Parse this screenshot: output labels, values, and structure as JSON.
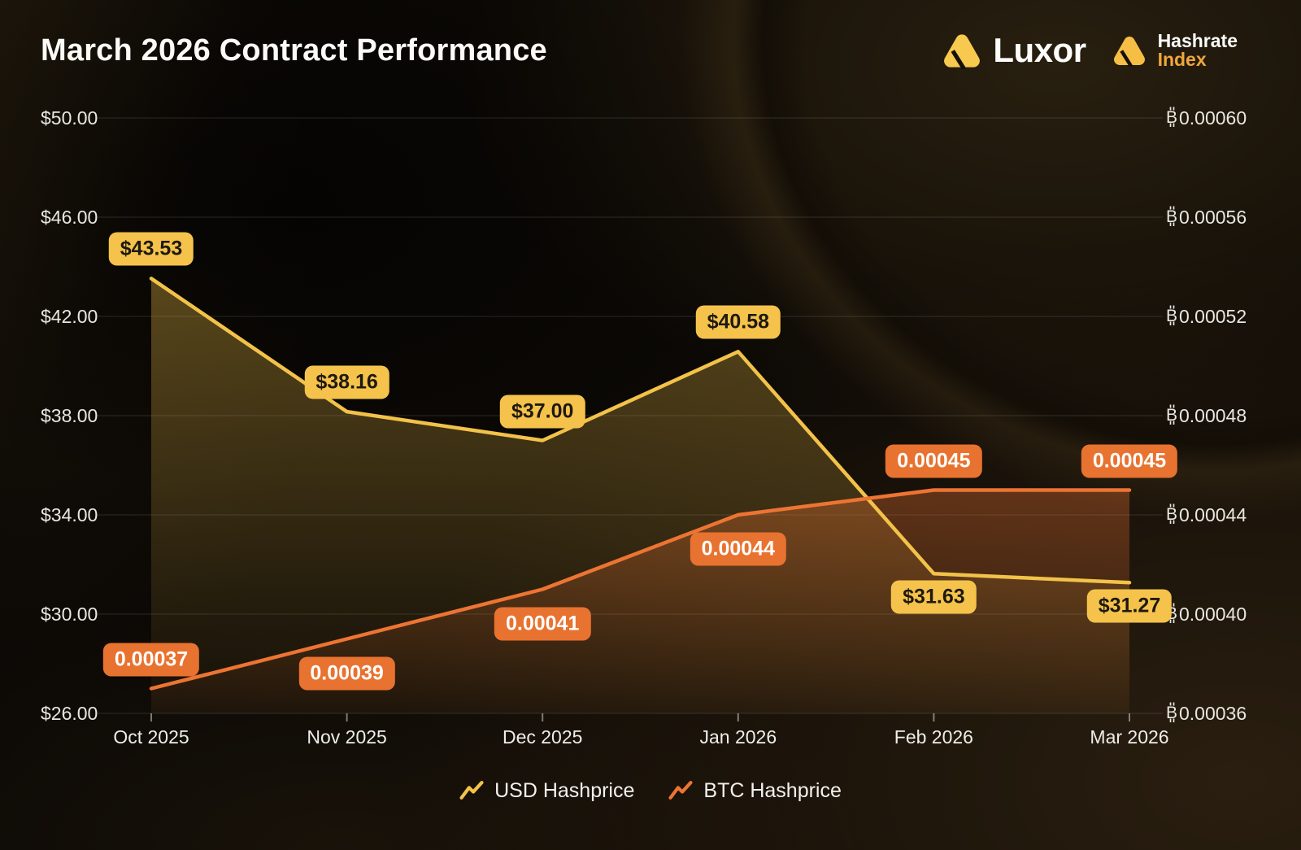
{
  "header": {
    "title": "March 2026 Contract Performance"
  },
  "logos": {
    "luxor": "Luxor",
    "hashrate_line1": "Hashrate",
    "hashrate_line2": "Index",
    "triangle_color": "#F7C94F",
    "index_text_color": "#F0A73C"
  },
  "colors": {
    "usd_yellow": "#F2C249",
    "btc_orange": "#ED7433",
    "background": "#0B0805",
    "gridline": "rgba(255,255,255,0.13)",
    "axis_text": "#E9E7E2"
  },
  "chart_data": {
    "type": "line",
    "title": "March 2026 Contract Performance",
    "categories": [
      "Oct 2025",
      "Nov 2025",
      "Dec 2025",
      "Jan 2026",
      "Feb 2026",
      "Mar 2026"
    ],
    "series": [
      {
        "name": "USD Hashprice",
        "axis": "left",
        "color": "#F2C249",
        "badge_bg": "#F5C34B",
        "badge_text": "#1E1910",
        "values": [
          43.53,
          38.16,
          37.0,
          40.58,
          31.63,
          31.27
        ],
        "labels": [
          "$43.53",
          "$38.16",
          "$37.00",
          "$40.58",
          "$31.63",
          "$31.27"
        ],
        "label_position": [
          "above",
          "above",
          "above",
          "above",
          "below",
          "below"
        ]
      },
      {
        "name": "BTC Hashprice",
        "axis": "right",
        "color": "#ED7433",
        "badge_bg": "#E8722F",
        "badge_text": "#FFFFFF",
        "values": [
          0.00037,
          0.00039,
          0.00041,
          0.00044,
          0.00045,
          0.00045
        ],
        "labels": [
          "0.00037",
          "0.00039",
          "0.00041",
          "0.00044",
          "0.00045",
          "0.00045"
        ],
        "label_position": [
          "above",
          "below",
          "below",
          "below",
          "above",
          "above"
        ]
      }
    ],
    "left_axis": {
      "ticks": [
        "$50.00",
        "$46.00",
        "$42.00",
        "$38.00",
        "$34.00",
        "$30.00",
        "$26.00"
      ],
      "min": 26,
      "max": 50
    },
    "right_axis": {
      "ticks": [
        "₿0.00060",
        "₿0.00056",
        "₿0.00052",
        "₿0.00048",
        "₿0.00044",
        "₿0.00040",
        "₿0.00036"
      ],
      "min": 0.00036,
      "max": 0.0006
    },
    "grid": true,
    "legend_position": "bottom"
  },
  "legend": [
    {
      "label": "USD Hashprice"
    },
    {
      "label": "BTC Hashprice"
    }
  ]
}
